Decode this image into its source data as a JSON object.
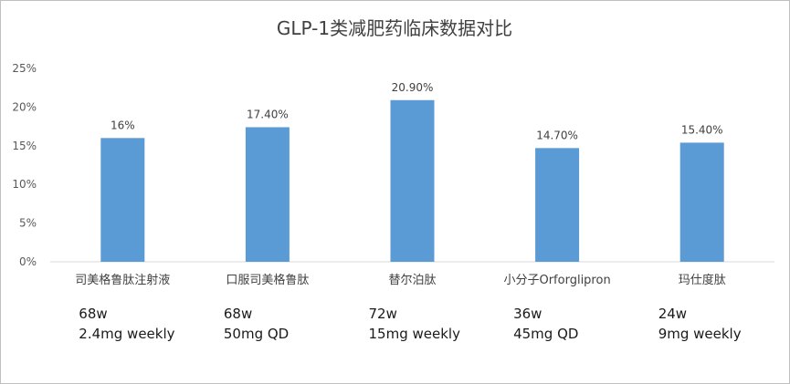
{
  "chart_data": {
    "type": "bar",
    "title": "GLP-1类减肥药临床数据对比",
    "categories": [
      "司美格鲁肽注射液",
      "口服司美格鲁肽",
      "替尔泊肽",
      "小分子Orforglipron",
      "玛仕度肽"
    ],
    "values": [
      16,
      17.4,
      20.9,
      14.7,
      15.4
    ],
    "data_labels": [
      "16%",
      "17.40%",
      "20.90%",
      "14.70%",
      "15.40%"
    ],
    "y_ticks": [
      "0%",
      "5%",
      "10%",
      "15%",
      "20%",
      "25%"
    ],
    "ylim": [
      0,
      25
    ],
    "grid": false,
    "bar_color": "#5b9bd5",
    "notes": [
      [
        "68w",
        "2.4mg weekly"
      ],
      [
        "68w",
        "50mg QD"
      ],
      [
        "72w",
        "15mg weekly"
      ],
      [
        "36w",
        "45mg QD"
      ],
      [
        "24w",
        "9mg weekly"
      ]
    ]
  }
}
